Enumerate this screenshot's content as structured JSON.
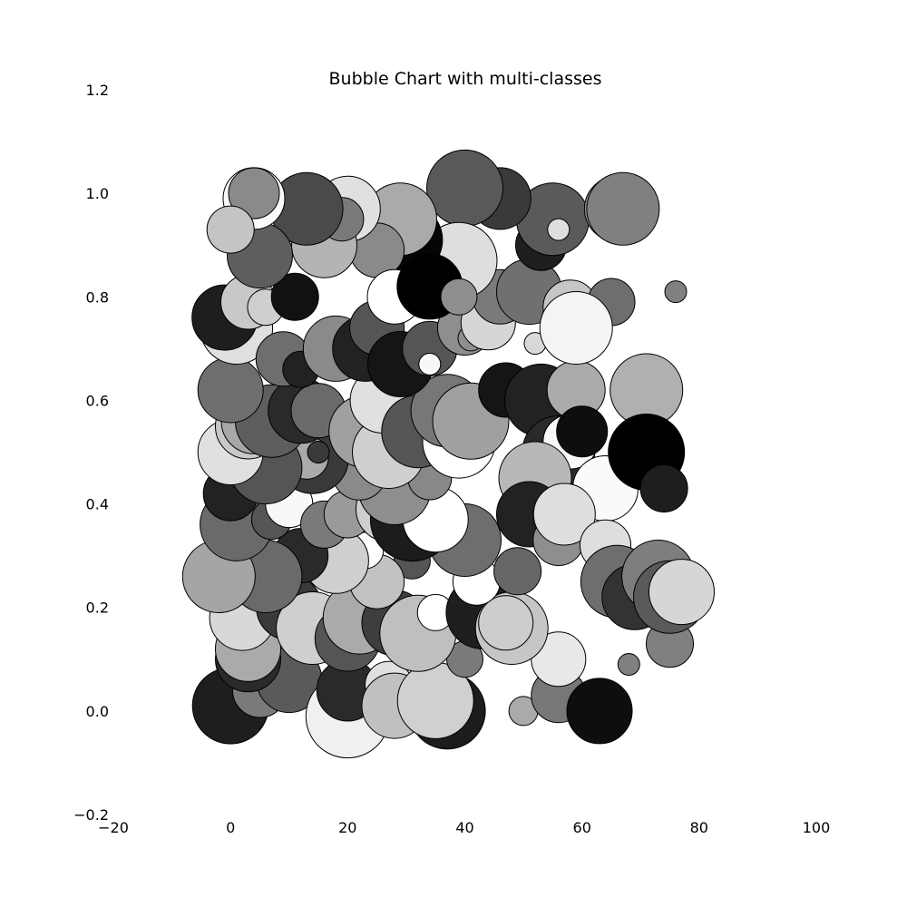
{
  "chart_data": {
    "type": "scatter",
    "title": "Bubble Chart with multi-classes",
    "xlabel": "",
    "ylabel": "",
    "xlim": [
      -20,
      100
    ],
    "ylim": [
      -0.2,
      1.2
    ],
    "x_ticks": [
      "−20",
      "0",
      "20",
      "40",
      "60",
      "80",
      "100"
    ],
    "y_ticks": [
      "−0.2",
      "0.0",
      "0.2",
      "0.4",
      "0.6",
      "0.8",
      "1.0",
      "1.2"
    ],
    "grid": false,
    "legend": "none",
    "marker_edge_color": "#000000",
    "size_unit": "relative radius",
    "points": [
      {
        "x": 0,
        "y": 0.01,
        "r": 42,
        "color": "#1e1e1e"
      },
      {
        "x": 5,
        "y": 0.04,
        "r": 30,
        "color": "#7a7a7a"
      },
      {
        "x": 10,
        "y": 0.06,
        "r": 36,
        "color": "#5a5a5a"
      },
      {
        "x": 20,
        "y": -0.01,
        "r": 46,
        "color": "#f0f0f0"
      },
      {
        "x": 20,
        "y": 0.04,
        "r": 34,
        "color": "#2a2a2a"
      },
      {
        "x": 27,
        "y": 0.05,
        "r": 26,
        "color": "#e0e0e0"
      },
      {
        "x": 28,
        "y": 0.01,
        "r": 36,
        "color": "#c0c0c0"
      },
      {
        "x": 37,
        "y": 0.0,
        "r": 42,
        "color": "#1c1c1c"
      },
      {
        "x": 35,
        "y": 0.02,
        "r": 42,
        "color": "#d0d0d0"
      },
      {
        "x": 40,
        "y": 0.1,
        "r": 20,
        "color": "#7a7a7a"
      },
      {
        "x": 50,
        "y": 0.0,
        "r": 16,
        "color": "#aaaaaa"
      },
      {
        "x": 56,
        "y": 0.03,
        "r": 30,
        "color": "#777777"
      },
      {
        "x": 63,
        "y": 0.0,
        "r": 36,
        "color": "#0e0e0e"
      },
      {
        "x": 56,
        "y": 0.1,
        "r": 30,
        "color": "#e8e8e8"
      },
      {
        "x": 68,
        "y": 0.09,
        "r": 12,
        "color": "#808080"
      },
      {
        "x": 75,
        "y": 0.13,
        "r": 26,
        "color": "#808080"
      },
      {
        "x": 3,
        "y": 0.1,
        "r": 36,
        "color": "#2a2a2a"
      },
      {
        "x": 3,
        "y": 0.12,
        "r": 36,
        "color": "#aaaaaa"
      },
      {
        "x": 2,
        "y": 0.18,
        "r": 36,
        "color": "#d8d8d8"
      },
      {
        "x": 10,
        "y": 0.2,
        "r": 36,
        "color": "#3a3a3a"
      },
      {
        "x": 14,
        "y": 0.16,
        "r": 40,
        "color": "#cfcfcf"
      },
      {
        "x": 20,
        "y": 0.14,
        "r": 36,
        "color": "#555555"
      },
      {
        "x": 22,
        "y": 0.18,
        "r": 40,
        "color": "#aaaaaa"
      },
      {
        "x": 28,
        "y": 0.17,
        "r": 36,
        "color": "#3e3e3e"
      },
      {
        "x": 32,
        "y": 0.15,
        "r": 42,
        "color": "#bfbfbf"
      },
      {
        "x": 35,
        "y": 0.19,
        "r": 20,
        "color": "#ffffff"
      },
      {
        "x": 43,
        "y": 0.19,
        "r": 40,
        "color": "#1e1e1e"
      },
      {
        "x": 48,
        "y": 0.16,
        "r": 40,
        "color": "#c6c6c6"
      },
      {
        "x": 47,
        "y": 0.17,
        "r": 30,
        "color": "#cdcdcd"
      },
      {
        "x": 42,
        "y": 0.25,
        "r": 26,
        "color": "#ffffff"
      },
      {
        "x": 49,
        "y": 0.27,
        "r": 26,
        "color": "#666666"
      },
      {
        "x": 40,
        "y": 0.33,
        "r": 40,
        "color": "#6e6e6e"
      },
      {
        "x": 31,
        "y": 0.29,
        "r": 20,
        "color": "#555555"
      },
      {
        "x": 25,
        "y": 0.25,
        "r": 30,
        "color": "#c2c2c2"
      },
      {
        "x": 23,
        "y": 0.31,
        "r": 20,
        "color": "#ffffff"
      },
      {
        "x": 18,
        "y": 0.29,
        "r": 36,
        "color": "#cfcfcf"
      },
      {
        "x": 12,
        "y": 0.3,
        "r": 30,
        "color": "#2a2a2a"
      },
      {
        "x": 6,
        "y": 0.26,
        "r": 40,
        "color": "#6a6a6a"
      },
      {
        "x": -2,
        "y": 0.26,
        "r": 40,
        "color": "#a5a5a5"
      },
      {
        "x": 1,
        "y": 0.36,
        "r": 40,
        "color": "#6a6a6a"
      },
      {
        "x": 0,
        "y": 0.42,
        "r": 30,
        "color": "#222222"
      },
      {
        "x": 7,
        "y": 0.37,
        "r": 22,
        "color": "#555555"
      },
      {
        "x": 10,
        "y": 0.4,
        "r": 26,
        "color": "#f8f8f8"
      },
      {
        "x": 16,
        "y": 0.36,
        "r": 26,
        "color": "#7a7a7a"
      },
      {
        "x": 20,
        "y": 0.38,
        "r": 26,
        "color": "#9a9a9a"
      },
      {
        "x": 27,
        "y": 0.39,
        "r": 36,
        "color": "#cfcfcf"
      },
      {
        "x": 31,
        "y": 0.37,
        "r": 46,
        "color": "#1c1c1c"
      },
      {
        "x": 35,
        "y": 0.37,
        "r": 36,
        "color": "#ffffff"
      },
      {
        "x": 27,
        "y": 0.45,
        "r": 40,
        "color": "#151515"
      },
      {
        "x": 28,
        "y": 0.43,
        "r": 40,
        "color": "#8e8e8e"
      },
      {
        "x": 34,
        "y": 0.45,
        "r": 24,
        "color": "#888888"
      },
      {
        "x": 22,
        "y": 0.46,
        "r": 30,
        "color": "#8a8a8a"
      },
      {
        "x": 14,
        "y": 0.49,
        "r": 40,
        "color": "#3a3a3a"
      },
      {
        "x": 13,
        "y": 0.49,
        "r": 24,
        "color": "#aaaaaa"
      },
      {
        "x": 15,
        "y": 0.5,
        "r": 12,
        "color": "#3a3a3a"
      },
      {
        "x": 6,
        "y": 0.47,
        "r": 40,
        "color": "#555555"
      },
      {
        "x": 0,
        "y": 0.5,
        "r": 36,
        "color": "#e0e0e0"
      },
      {
        "x": 3,
        "y": 0.55,
        "r": 36,
        "color": "#c8c8c8"
      },
      {
        "x": 4,
        "y": 0.56,
        "r": 36,
        "color": "#a8a8a8"
      },
      {
        "x": 7,
        "y": 0.56,
        "r": 40,
        "color": "#5e5e5e"
      },
      {
        "x": 12,
        "y": 0.58,
        "r": 36,
        "color": "#2a2a2a"
      },
      {
        "x": 15,
        "y": 0.58,
        "r": 30,
        "color": "#6a6a6a"
      },
      {
        "x": 23,
        "y": 0.54,
        "r": 40,
        "color": "#a0a0a0"
      },
      {
        "x": 27,
        "y": 0.5,
        "r": 40,
        "color": "#cfcfcf"
      },
      {
        "x": 26,
        "y": 0.6,
        "r": 36,
        "color": "#e0e0e0"
      },
      {
        "x": 32,
        "y": 0.54,
        "r": 40,
        "color": "#555555"
      },
      {
        "x": 39,
        "y": 0.52,
        "r": 40,
        "color": "#ffffff"
      },
      {
        "x": 37,
        "y": 0.58,
        "r": 40,
        "color": "#777777"
      },
      {
        "x": 41,
        "y": 0.56,
        "r": 42,
        "color": "#a0a0a0"
      },
      {
        "x": 47,
        "y": 0.62,
        "r": 30,
        "color": "#151515"
      },
      {
        "x": 53,
        "y": 0.6,
        "r": 40,
        "color": "#222222"
      },
      {
        "x": 59,
        "y": 0.62,
        "r": 32,
        "color": "#aaaaaa"
      },
      {
        "x": 71,
        "y": 0.62,
        "r": 40,
        "color": "#b0b0b0"
      },
      {
        "x": 56,
        "y": 0.5,
        "r": 40,
        "color": "#2a2a2a"
      },
      {
        "x": 58,
        "y": 0.52,
        "r": 30,
        "color": "#f8f8f8"
      },
      {
        "x": 60,
        "y": 0.54,
        "r": 28,
        "color": "#0e0e0e"
      },
      {
        "x": 64,
        "y": 0.43,
        "r": 36,
        "color": "#fafafa"
      },
      {
        "x": 71,
        "y": 0.5,
        "r": 42,
        "color": "#000000"
      },
      {
        "x": 74,
        "y": 0.43,
        "r": 26,
        "color": "#1e1e1e"
      },
      {
        "x": 52,
        "y": 0.45,
        "r": 40,
        "color": "#b8b8b8"
      },
      {
        "x": 51,
        "y": 0.38,
        "r": 36,
        "color": "#222222"
      },
      {
        "x": 56,
        "y": 0.33,
        "r": 28,
        "color": "#8e8e8e"
      },
      {
        "x": 57,
        "y": 0.38,
        "r": 34,
        "color": "#dedede"
      },
      {
        "x": 64,
        "y": 0.32,
        "r": 28,
        "color": "#dedede"
      },
      {
        "x": 66,
        "y": 0.25,
        "r": 40,
        "color": "#6e6e6e"
      },
      {
        "x": 69,
        "y": 0.22,
        "r": 36,
        "color": "#333333"
      },
      {
        "x": 73,
        "y": 0.26,
        "r": 40,
        "color": "#7e7e7e"
      },
      {
        "x": 75,
        "y": 0.22,
        "r": 40,
        "color": "#5a5a5a"
      },
      {
        "x": 77,
        "y": 0.23,
        "r": 36,
        "color": "#d6d6d6"
      },
      {
        "x": 0,
        "y": 0.62,
        "r": 36,
        "color": "#6e6e6e"
      },
      {
        "x": 1,
        "y": 0.74,
        "r": 40,
        "color": "#e0e0e0"
      },
      {
        "x": -1,
        "y": 0.76,
        "r": 36,
        "color": "#1e1e1e"
      },
      {
        "x": 3,
        "y": 0.79,
        "r": 30,
        "color": "#c8c8c8"
      },
      {
        "x": 6,
        "y": 0.78,
        "r": 20,
        "color": "#cfcfcf"
      },
      {
        "x": 11,
        "y": 0.8,
        "r": 26,
        "color": "#111111"
      },
      {
        "x": 9,
        "y": 0.68,
        "r": 30,
        "color": "#6e6e6e"
      },
      {
        "x": 12,
        "y": 0.66,
        "r": 20,
        "color": "#222222"
      },
      {
        "x": 18,
        "y": 0.7,
        "r": 36,
        "color": "#8a8a8a"
      },
      {
        "x": 23,
        "y": 0.7,
        "r": 36,
        "color": "#222222"
      },
      {
        "x": 25,
        "y": 0.74,
        "r": 30,
        "color": "#555555"
      },
      {
        "x": 29,
        "y": 0.67,
        "r": 36,
        "color": "#151515"
      },
      {
        "x": 34,
        "y": 0.7,
        "r": 30,
        "color": "#555555"
      },
      {
        "x": 34,
        "y": 0.67,
        "r": 12,
        "color": "#f8f8f8"
      },
      {
        "x": 40,
        "y": 0.74,
        "r": 30,
        "color": "#8e8e8e"
      },
      {
        "x": 41,
        "y": 0.72,
        "r": 14,
        "color": "#8e8e8e"
      },
      {
        "x": 44,
        "y": 0.75,
        "r": 30,
        "color": "#d6d6d6"
      },
      {
        "x": 46,
        "y": 0.8,
        "r": 30,
        "color": "#7a7a7a"
      },
      {
        "x": 51,
        "y": 0.81,
        "r": 36,
        "color": "#707070"
      },
      {
        "x": 52,
        "y": 0.71,
        "r": 12,
        "color": "#d8d8d8"
      },
      {
        "x": 58,
        "y": 0.78,
        "r": 30,
        "color": "#c6c6c6"
      },
      {
        "x": 65,
        "y": 0.79,
        "r": 26,
        "color": "#6e6e6e"
      },
      {
        "x": 59,
        "y": 0.74,
        "r": 40,
        "color": "#f4f4f4"
      },
      {
        "x": 76,
        "y": 0.81,
        "r": 12,
        "color": "#808080"
      },
      {
        "x": 53,
        "y": 0.9,
        "r": 28,
        "color": "#1e1e1e"
      },
      {
        "x": 55,
        "y": 0.95,
        "r": 40,
        "color": "#5a5a5a"
      },
      {
        "x": 56,
        "y": 0.93,
        "r": 12,
        "color": "#dedede"
      },
      {
        "x": 66,
        "y": 0.97,
        "r": 36,
        "color": "#8e8e8e"
      },
      {
        "x": 67,
        "y": 0.97,
        "r": 40,
        "color": "#808080"
      },
      {
        "x": 46,
        "y": 0.99,
        "r": 34,
        "color": "#3a3a3a"
      },
      {
        "x": 40,
        "y": 1.01,
        "r": 42,
        "color": "#595959"
      },
      {
        "x": 39,
        "y": 0.87,
        "r": 42,
        "color": "#dedede"
      },
      {
        "x": 30,
        "y": 0.91,
        "r": 40,
        "color": "#050505"
      },
      {
        "x": 29,
        "y": 0.95,
        "r": 40,
        "color": "#aaaaaa"
      },
      {
        "x": 25,
        "y": 0.89,
        "r": 30,
        "color": "#8a8a8a"
      },
      {
        "x": 28,
        "y": 0.8,
        "r": 30,
        "color": "#ffffff"
      },
      {
        "x": 34,
        "y": 0.82,
        "r": 36,
        "color": "#000000"
      },
      {
        "x": 39,
        "y": 0.8,
        "r": 20,
        "color": "#8e8e8e"
      },
      {
        "x": 20,
        "y": 0.97,
        "r": 36,
        "color": "#e0e0e0"
      },
      {
        "x": 16,
        "y": 0.9,
        "r": 36,
        "color": "#b4b4b4"
      },
      {
        "x": 19,
        "y": 0.95,
        "r": 24,
        "color": "#7a7a7a"
      },
      {
        "x": 13,
        "y": 0.97,
        "r": 40,
        "color": "#4a4a4a"
      },
      {
        "x": 5,
        "y": 0.88,
        "r": 36,
        "color": "#5e5e5e"
      },
      {
        "x": 4,
        "y": 0.99,
        "r": 34,
        "color": "#fafafa"
      },
      {
        "x": 4,
        "y": 1.0,
        "r": 28,
        "color": "#8a8a8a"
      },
      {
        "x": 0,
        "y": 0.93,
        "r": 26,
        "color": "#c4c4c4"
      }
    ]
  }
}
